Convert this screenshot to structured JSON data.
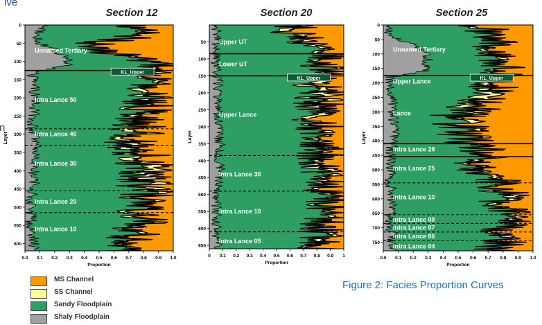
{
  "clipped_text": {
    "top": "ive",
    "side": "n"
  },
  "colors": {
    "ms_channel": "#ff9900",
    "ss_channel": "#ffff99",
    "sandy_floodplain": "#2e9e62",
    "shaly_floodplain": "#a0a0a0",
    "label_box": "#0b5a30"
  },
  "legend": [
    {
      "label": "MS Channel",
      "color": "#ff9900"
    },
    {
      "label": "SS Channel",
      "color": "#ffff99"
    },
    {
      "label": "Sandy Floodplain",
      "color": "#2e9e62"
    },
    {
      "label": "Shaly Floodplain",
      "color": "#a0a0a0"
    }
  ],
  "caption": "Figure 2: Facies Proportion Curves",
  "chart_data": [
    {
      "type": "area",
      "title": "Section 12",
      "xlabel": "Proportion",
      "ylabel": "Layer",
      "xlim": [
        0,
        1
      ],
      "ylim": [
        0,
        620
      ],
      "y_inverted": true,
      "x_ticks": [
        "0.0",
        "0.1",
        "0.2",
        "0.3",
        "0.4",
        "0.5",
        "0.6",
        "0.7",
        "0.8",
        "0.9",
        "1.0"
      ],
      "y_ticks": [
        0,
        50,
        100,
        150,
        200,
        250,
        300,
        350,
        400,
        450,
        500,
        550,
        600
      ],
      "series_order": [
        "Shaly Floodplain",
        "Sandy Floodplain",
        "SS Channel",
        "MS Channel"
      ],
      "profile": [
        {
          "layer": 0,
          "shaly": 0.15,
          "sandy": 0.55,
          "ss": 0.02
        },
        {
          "layer": 25,
          "shaly": 0.08,
          "sandy": 0.7,
          "ss": 0.03
        },
        {
          "layer": 50,
          "shaly": 0.1,
          "sandy": 0.38,
          "ss": 0.03
        },
        {
          "layer": 70,
          "shaly": 0.2,
          "sandy": 0.3,
          "ss": 0.02
        },
        {
          "layer": 90,
          "shaly": 0.28,
          "sandy": 0.45,
          "ss": 0.04
        },
        {
          "layer": 110,
          "shaly": 0.3,
          "sandy": 0.55,
          "ss": 0.05
        },
        {
          "layer": 130,
          "shaly": 0.05,
          "sandy": 0.72,
          "ss": 0.06
        },
        {
          "layer": 160,
          "shaly": 0.06,
          "sandy": 0.76,
          "ss": 0.05
        },
        {
          "layer": 200,
          "shaly": 0.07,
          "sandy": 0.74,
          "ss": 0.06
        },
        {
          "layer": 240,
          "shaly": 0.06,
          "sandy": 0.72,
          "ss": 0.08
        },
        {
          "layer": 270,
          "shaly": 0.05,
          "sandy": 0.68,
          "ss": 0.07
        },
        {
          "layer": 300,
          "shaly": 0.06,
          "sandy": 0.62,
          "ss": 0.07
        },
        {
          "layer": 330,
          "shaly": 0.07,
          "sandy": 0.58,
          "ss": 0.08
        },
        {
          "layer": 360,
          "shaly": 0.08,
          "sandy": 0.66,
          "ss": 0.08
        },
        {
          "layer": 400,
          "shaly": 0.06,
          "sandy": 0.66,
          "ss": 0.12
        },
        {
          "layer": 430,
          "shaly": 0.06,
          "sandy": 0.7,
          "ss": 0.1
        },
        {
          "layer": 460,
          "shaly": 0.05,
          "sandy": 0.72,
          "ss": 0.06
        },
        {
          "layer": 500,
          "shaly": 0.04,
          "sandy": 0.74,
          "ss": 0.05
        },
        {
          "layer": 540,
          "shaly": 0.04,
          "sandy": 0.7,
          "ss": 0.05
        },
        {
          "layer": 570,
          "shaly": 0.05,
          "sandy": 0.66,
          "ss": 0.05
        },
        {
          "layer": 600,
          "shaly": 0.06,
          "sandy": 0.62,
          "ss": 0.05
        },
        {
          "layer": 620,
          "shaly": 0.06,
          "sandy": 0.6,
          "ss": 0.05
        }
      ],
      "zones": [
        {
          "label": "Unnamed Tertiary",
          "layer": 70
        },
        {
          "label": "Intra Lance 50",
          "layer": 205
        },
        {
          "label": "Intra Lance 40",
          "layer": 300
        },
        {
          "label": "Intra Lance 30",
          "layer": 380
        },
        {
          "label": "Intra Lance 20",
          "layer": 485
        },
        {
          "label": "Intra Lance 10",
          "layer": 560
        }
      ],
      "boundaries": [
        {
          "layer": 125,
          "style": "solid"
        },
        {
          "layer": 285,
          "style": "dashed"
        },
        {
          "layer": 330,
          "style": "dashed"
        },
        {
          "layer": 455,
          "style": "dashed"
        },
        {
          "layer": 515,
          "style": "dashed"
        }
      ],
      "marker": {
        "label": "KL_Upper",
        "layer": 128,
        "x": 0.58
      }
    },
    {
      "type": "area",
      "title": "Section 20",
      "xlabel": "Proportion",
      "ylabel": "Layer",
      "xlim": [
        0,
        1
      ],
      "ylim": [
        0,
        660
      ],
      "y_inverted": true,
      "x_ticks": [
        "0",
        "0.1",
        "0.2",
        "0.3",
        "0.4",
        "0.5",
        "0.6",
        "0.7",
        "0.8",
        "0.9",
        "1"
      ],
      "y_ticks": [
        50,
        100,
        150,
        200,
        250,
        300,
        350,
        400,
        450,
        500,
        550,
        600,
        650
      ],
      "series_order": [
        "Shaly Floodplain",
        "Sandy Floodplain",
        "SS Channel",
        "MS Channel"
      ],
      "profile": [
        {
          "layer": 0,
          "shaly": 0.05,
          "sandy": 0.5,
          "ss": 0.05
        },
        {
          "layer": 40,
          "shaly": 0.06,
          "sandy": 0.56,
          "ss": 0.08
        },
        {
          "layer": 80,
          "shaly": 0.05,
          "sandy": 0.82,
          "ss": 0.05
        },
        {
          "layer": 110,
          "shaly": 0.04,
          "sandy": 0.8,
          "ss": 0.06
        },
        {
          "layer": 150,
          "shaly": 0.06,
          "sandy": 0.72,
          "ss": 0.08
        },
        {
          "layer": 200,
          "shaly": 0.07,
          "sandy": 0.68,
          "ss": 0.1
        },
        {
          "layer": 250,
          "shaly": 0.06,
          "sandy": 0.7,
          "ss": 0.09
        },
        {
          "layer": 300,
          "shaly": 0.06,
          "sandy": 0.7,
          "ss": 0.06
        },
        {
          "layer": 350,
          "shaly": 0.08,
          "sandy": 0.72,
          "ss": 0.06
        },
        {
          "layer": 390,
          "shaly": 0.07,
          "sandy": 0.66,
          "ss": 0.08
        },
        {
          "layer": 430,
          "shaly": 0.08,
          "sandy": 0.7,
          "ss": 0.08
        },
        {
          "layer": 480,
          "shaly": 0.06,
          "sandy": 0.76,
          "ss": 0.06
        },
        {
          "layer": 520,
          "shaly": 0.05,
          "sandy": 0.8,
          "ss": 0.05
        },
        {
          "layer": 560,
          "shaly": 0.06,
          "sandy": 0.8,
          "ss": 0.05
        },
        {
          "layer": 600,
          "shaly": 0.05,
          "sandy": 0.74,
          "ss": 0.07
        },
        {
          "layer": 630,
          "shaly": 0.06,
          "sandy": 0.72,
          "ss": 0.06
        },
        {
          "layer": 660,
          "shaly": 0.06,
          "sandy": 0.7,
          "ss": 0.06
        }
      ],
      "zones": [
        {
          "label": "Upper UT",
          "layer": 50
        },
        {
          "label": "Lower UT",
          "layer": 115
        },
        {
          "label": "Upper Lance",
          "layer": 265
        },
        {
          "label": "Intra Lance 30",
          "layer": 440
        },
        {
          "label": "Intra Lance 10",
          "layer": 550
        },
        {
          "label": "Intra Lance 05",
          "layer": 638
        }
      ],
      "boundaries": [
        {
          "layer": 85,
          "style": "solid"
        },
        {
          "layer": 150,
          "style": "solid"
        },
        {
          "layer": 385,
          "style": "dashed"
        },
        {
          "layer": 490,
          "style": "dashed"
        },
        {
          "layer": 610,
          "style": "dashed"
        }
      ],
      "marker": {
        "label": "KL_Upper",
        "layer": 155,
        "x": 0.58
      }
    },
    {
      "type": "area",
      "title": "Section 25",
      "xlabel": "Proportion",
      "ylabel": "Layer",
      "xlim": [
        0,
        1
      ],
      "ylim": [
        0,
        780
      ],
      "y_inverted": true,
      "x_ticks": [
        "0.0",
        "0.1",
        "0.2",
        "0.3",
        "0.4",
        "0.5",
        "0.6",
        "0.7",
        "0.8",
        "0.9",
        "1.0"
      ],
      "y_ticks": [
        0,
        50,
        100,
        150,
        200,
        250,
        300,
        350,
        400,
        450,
        500,
        550,
        600,
        650,
        700,
        750
      ],
      "series_order": [
        "Shaly Floodplain",
        "Sandy Floodplain",
        "SS Channel",
        "MS Channel"
      ],
      "profile": [
        {
          "layer": 0,
          "shaly": 0.02,
          "sandy": 0.6,
          "ss": 0.03
        },
        {
          "layer": 40,
          "shaly": 0.05,
          "sandy": 0.65,
          "ss": 0.04
        },
        {
          "layer": 80,
          "shaly": 0.25,
          "sandy": 0.45,
          "ss": 0.04
        },
        {
          "layer": 120,
          "shaly": 0.3,
          "sandy": 0.45,
          "ss": 0.04
        },
        {
          "layer": 160,
          "shaly": 0.28,
          "sandy": 0.5,
          "ss": 0.04
        },
        {
          "layer": 180,
          "shaly": 0.04,
          "sandy": 0.72,
          "ss": 0.05
        },
        {
          "layer": 230,
          "shaly": 0.05,
          "sandy": 0.64,
          "ss": 0.08
        },
        {
          "layer": 270,
          "shaly": 0.06,
          "sandy": 0.5,
          "ss": 0.1
        },
        {
          "layer": 320,
          "shaly": 0.07,
          "sandy": 0.36,
          "ss": 0.07
        },
        {
          "layer": 360,
          "shaly": 0.08,
          "sandy": 0.4,
          "ss": 0.05
        },
        {
          "layer": 400,
          "shaly": 0.06,
          "sandy": 0.48,
          "ss": 0.05
        },
        {
          "layer": 440,
          "shaly": 0.05,
          "sandy": 0.62,
          "ss": 0.05
        },
        {
          "layer": 480,
          "shaly": 0.05,
          "sandy": 0.55,
          "ss": 0.05
        },
        {
          "layer": 520,
          "shaly": 0.05,
          "sandy": 0.62,
          "ss": 0.05
        },
        {
          "layer": 560,
          "shaly": 0.05,
          "sandy": 0.72,
          "ss": 0.05
        },
        {
          "layer": 600,
          "shaly": 0.06,
          "sandy": 0.7,
          "ss": 0.06
        },
        {
          "layer": 640,
          "shaly": 0.05,
          "sandy": 0.74,
          "ss": 0.05
        },
        {
          "layer": 680,
          "shaly": 0.05,
          "sandy": 0.76,
          "ss": 0.05
        },
        {
          "layer": 720,
          "shaly": 0.06,
          "sandy": 0.72,
          "ss": 0.05
        },
        {
          "layer": 760,
          "shaly": 0.05,
          "sandy": 0.7,
          "ss": 0.05
        },
        {
          "layer": 780,
          "shaly": 0.05,
          "sandy": 0.68,
          "ss": 0.05
        }
      ],
      "zones": [
        {
          "label": "Unnamed Tertiary",
          "layer": 85
        },
        {
          "label": "Upper Lance",
          "layer": 195
        },
        {
          "label": "Lance",
          "layer": 305
        },
        {
          "label": "Intra Lance 28",
          "layer": 430
        },
        {
          "label": "Intra Lance 25",
          "layer": 495
        },
        {
          "label": "Intra Lance 10",
          "layer": 595
        },
        {
          "label": "Intra Lance 08",
          "layer": 672
        },
        {
          "label": "Intra Lance 07",
          "layer": 700
        },
        {
          "label": "Intra Lance 06",
          "layer": 730
        },
        {
          "label": "Intra Lance 04",
          "layer": 765
        }
      ],
      "boundaries": [
        {
          "layer": 175,
          "style": "solid"
        },
        {
          "layer": 410,
          "style": "solid"
        },
        {
          "layer": 455,
          "style": "solid"
        },
        {
          "layer": 545,
          "style": "dashed"
        },
        {
          "layer": 655,
          "style": "dashed"
        },
        {
          "layer": 685,
          "style": "dashed"
        },
        {
          "layer": 715,
          "style": "dashed"
        },
        {
          "layer": 745,
          "style": "dashed"
        }
      ],
      "marker": {
        "label": "KL_Upper",
        "layer": 182,
        "x": 0.58
      }
    }
  ]
}
